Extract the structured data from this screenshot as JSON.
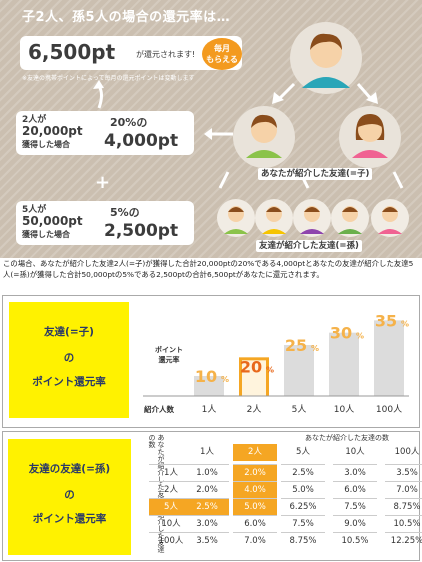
{
  "top": {
    "headline": "子2人、孫5人の場合の還元率は…",
    "total": {
      "value": "6,500pt",
      "suffix": "が還元されます!"
    },
    "badge": [
      "毎月",
      "もらえる"
    ],
    "note": "※友達の携帯ポイントによって毎月の還元ポイントは変動します",
    "child_box": {
      "people": "2人が",
      "points": "20,000pt",
      "acquired": "獲得した場合",
      "rate": "20%の",
      "amount": "4,000pt"
    },
    "plus": "+",
    "grand_box": {
      "people": "5人が",
      "points": "50,000pt",
      "acquired": "獲得した場合",
      "rate": "5%の",
      "amount": "2,500pt"
    },
    "label_child": "あなたが紹介した友達(=子)",
    "label_grand": "友達が紹介した友達(=孫)"
  },
  "explanation": "この場合、あなたが紹介した友達2人(=子)が獲得した合計20,000ptの20%である4,000ptとあなたの友達が紹介した友達5人(=孫)が獲得した合計50,000ptの5%である2,500ptの合計6,500ptがあなたに還元されます。",
  "section2": {
    "title_lines": [
      "友達(=子)",
      "の",
      "ポイント還元率"
    ],
    "ylabel_lines": [
      "ポイント",
      "還元率"
    ],
    "xlabel": "紹介人数"
  },
  "chart_data": {
    "type": "bar",
    "categories": [
      "1人",
      "2人",
      "5人",
      "10人",
      "100人"
    ],
    "values": [
      10,
      20,
      25,
      30,
      35
    ],
    "value_labels": [
      "10",
      "20",
      "25",
      "30",
      "35"
    ],
    "unit": "%",
    "highlight_index": 1,
    "ylim": [
      0,
      40
    ],
    "grid": false,
    "colors": {
      "bar": "#dcdcdc",
      "highlight": "#f5a623",
      "label": "#f5b24a",
      "highlight_label": "#e8681b"
    }
  },
  "section3": {
    "title_lines": [
      "友達の友達(=孫)",
      "の",
      "ポイント還元率"
    ],
    "caption": "あなたが紹介した友達の数",
    "vertical_label": "あなたが紹介した友達が紹介した友達の数",
    "col_headers": [
      "1人",
      "2人",
      "5人",
      "10人",
      "100人"
    ],
    "rows": [
      {
        "label": "1人",
        "cells": [
          "1.0%",
          "2.0%",
          "2.5%",
          "3.0%",
          "3.5%"
        ]
      },
      {
        "label": "2人",
        "cells": [
          "2.0%",
          "4.0%",
          "5.0%",
          "6.0%",
          "7.0%"
        ]
      },
      {
        "label": "5人",
        "cells": [
          "2.5%",
          "5.0%",
          "6.25%",
          "7.5%",
          "8.75%"
        ]
      },
      {
        "label": "10人",
        "cells": [
          "3.0%",
          "6.0%",
          "7.5%",
          "9.0%",
          "10.5%"
        ]
      },
      {
        "label": "100人",
        "cells": [
          "3.5%",
          "7.0%",
          "8.75%",
          "10.5%",
          "12.25%"
        ]
      }
    ],
    "highlight": {
      "col": 1,
      "row": 2,
      "color": "#f5a623"
    }
  }
}
